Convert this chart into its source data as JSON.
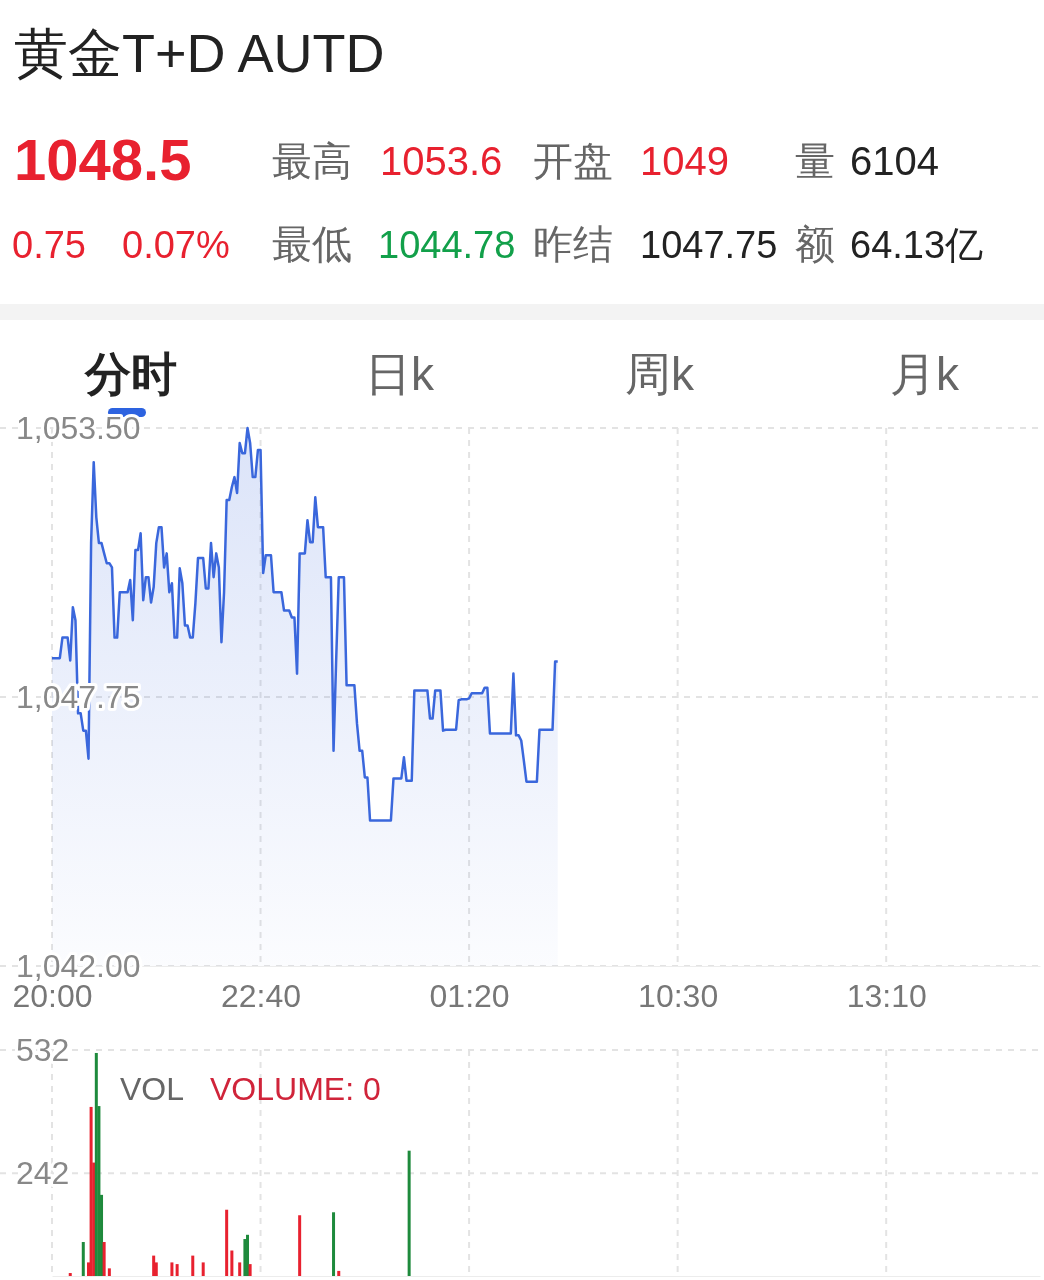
{
  "chart_data": [
    {
      "type": "area",
      "title": "黄金T+D AUTD",
      "annotations": [
        "1048.5",
        "最高",
        "1053.6",
        "开盘",
        "1049",
        "量",
        "6104",
        "0.75",
        "0.07%",
        "最低",
        "1044.78",
        "昨结",
        "1047.75",
        "额",
        "64.13亿",
        "分时",
        "日k",
        "周k",
        "月k"
      ],
      "categories": [
        "20:00",
        null,
        null,
        null,
        null,
        null,
        null,
        null,
        null,
        null,
        null,
        null,
        null,
        null,
        null,
        null,
        null,
        null,
        null,
        null,
        null,
        null,
        null,
        null,
        null,
        null,
        null,
        null,
        null,
        null,
        null,
        null,
        null,
        null,
        null,
        null,
        null,
        null,
        null,
        null,
        null,
        null,
        null,
        null,
        null,
        null,
        null,
        null,
        null,
        null,
        null,
        null,
        null,
        null,
        null,
        null,
        null,
        null,
        null,
        null,
        null,
        null,
        null,
        null,
        null,
        null,
        null,
        null,
        null,
        null,
        null,
        null,
        null,
        null,
        null,
        null,
        null,
        null,
        null,
        null,
        "22:40",
        null,
        null,
        null,
        null,
        null,
        null,
        null,
        null,
        null,
        null,
        null,
        null,
        null,
        null,
        null,
        null,
        null,
        null,
        null,
        null,
        null,
        null,
        null,
        null,
        null,
        null,
        null,
        null,
        null,
        null,
        null,
        null,
        null,
        null,
        null,
        null,
        null,
        null,
        null,
        null,
        null,
        null,
        null,
        null,
        null,
        null,
        null,
        null,
        null,
        null,
        null,
        null,
        null,
        null,
        null,
        null,
        null,
        null,
        null,
        null,
        null,
        null,
        null,
        null,
        null,
        null,
        null,
        null,
        null,
        null,
        null,
        null,
        null,
        null,
        null,
        null,
        null,
        null,
        null,
        "01:20",
        null,
        null,
        null,
        null,
        null,
        null,
        null,
        null,
        null,
        null,
        null,
        null,
        null,
        null,
        null,
        null,
        null,
        null,
        null,
        null,
        null,
        null,
        null,
        null,
        null,
        null,
        null,
        null,
        null,
        null,
        null,
        null,
        null,
        null,
        null,
        null,
        null,
        null,
        null,
        null,
        null,
        null,
        null,
        null,
        null,
        null,
        null,
        null,
        null,
        null,
        null,
        null,
        null,
        null,
        null,
        null,
        null,
        null,
        null,
        null,
        null,
        null,
        null,
        null,
        null,
        null,
        null,
        null,
        null,
        null,
        null,
        null,
        null,
        null,
        null,
        null,
        null,
        null,
        null,
        "10:30",
        null,
        null,
        null,
        null,
        null,
        null,
        null,
        null,
        null,
        null,
        null,
        null,
        null,
        null,
        null,
        null,
        null,
        null,
        null,
        null,
        null,
        null,
        null,
        null,
        null,
        null,
        null,
        null,
        null,
        null,
        null,
        null,
        null,
        null,
        null,
        null,
        null,
        null,
        null,
        null,
        null,
        null,
        null,
        null,
        null,
        null,
        null,
        null,
        null,
        null,
        null,
        null,
        null,
        null,
        null,
        null,
        null,
        null,
        null,
        null,
        null,
        null,
        null,
        null,
        null,
        null,
        null,
        null,
        null,
        null,
        null,
        null,
        null,
        null,
        null,
        null,
        null,
        null,
        null,
        "13:10",
        null,
        null,
        null,
        null,
        null,
        null,
        null,
        null,
        null,
        null,
        null,
        null,
        null,
        null,
        null,
        null,
        null,
        null,
        null,
        null,
        null,
        null,
        null,
        null,
        null,
        null,
        null,
        null,
        null,
        null,
        null,
        null,
        null,
        null,
        null,
        null,
        null,
        null,
        null,
        null,
        null,
        null,
        null,
        null,
        null,
        null,
        null,
        null,
        null,
        null,
        null,
        null,
        null,
        null,
        null,
        null,
        null,
        null,
        null
      ],
      "series": [
        {
          "color": "#3a67dc",
          "values": [
            1048.58,
            1048.58,
            1048.58,
            1048.58,
            1049.02,
            1049.02,
            1049.02,
            1048.53,
            1049.67,
            1049.39,
            1047.4,
            1047.4,
            1047.03,
            1047.03,
            1046.43,
            1051.04,
            1052.77,
            1051.59,
            1051.04,
            1051.04,
            1050.82,
            1050.61,
            1050.61,
            1050.52,
            1049.02,
            1049.02,
            1049.99,
            1049.99,
            1049.99,
            1049.99,
            1050.25,
            1049.39,
            1050.89,
            1050.89,
            1051.25,
            1049.82,
            1050.31,
            1050.31,
            1049.77,
            1050.1,
            1051.04,
            1051.38,
            1051.38,
            1050.52,
            1050.82,
            1049.99,
            1050.18,
            1049.02,
            1049.02,
            1050.5,
            1050.18,
            1049.28,
            1049.28,
            1049.02,
            1049.02,
            1049.75,
            1050.72,
            1050.72,
            1050.72,
            1050.07,
            1050.07,
            1051.04,
            1050.31,
            1050.82,
            1050.52,
            1048.92,
            1049.99,
            1051.96,
            1051.96,
            1052.24,
            1052.45,
            1052.11,
            1053.18,
            1052.96,
            1052.96,
            1053.5,
            1053.18,
            1052.45,
            1052.45,
            1053.03,
            1053.03,
            1050.4,
            1050.78,
            1050.78,
            1050.78,
            1049.99,
            1049.99,
            1049.99,
            1049.99,
            1049.6,
            1049.6,
            1049.6,
            1049.45,
            1049.45,
            1048.25,
            1050.82,
            1050.82,
            1050.82,
            1051.53,
            1051.06,
            1051.06,
            1052.02,
            1051.38,
            1051.38,
            1051.38,
            1050.31,
            1050.31,
            1050.31,
            1046.6,
            1048.53,
            1050.31,
            1050.31,
            1050.31,
            1048.0,
            1048.0,
            1048.0,
            1048.0,
            1047.18,
            1046.6,
            1046.6,
            1046.03,
            1046.03,
            1045.11,
            1045.11,
            1045.11,
            1045.11,
            1045.11,
            1045.11,
            1045.11,
            1045.11,
            1045.11,
            1046.01,
            1046.01,
            1046.01,
            1046.01,
            1046.46,
            1045.96,
            1045.96,
            1045.96,
            1047.89,
            1047.89,
            1047.89,
            1047.89,
            1047.89,
            1047.89,
            1047.29,
            1047.29,
            1047.89,
            1047.89,
            1047.89,
            1047.03,
            1047.05,
            1047.05,
            1047.05,
            1047.05,
            1047.05,
            1047.68,
            1047.7,
            1047.7,
            1047.7,
            1047.72,
            1047.83,
            1047.83,
            1047.83,
            1047.83,
            1047.83,
            1047.95,
            1047.95,
            1046.97,
            1046.97,
            1046.97,
            1046.97,
            1046.97,
            1046.97,
            1046.97,
            1046.97,
            1046.97,
            1048.25,
            1046.93,
            1046.93,
            1046.82,
            1046.39,
            1045.94,
            1045.94,
            1045.94,
            1045.94,
            1045.94,
            1047.05,
            1047.05,
            1047.05,
            1047.05,
            1047.05,
            1047.05,
            1048.51,
            1048.51,
            null,
            null,
            null,
            null,
            null,
            null,
            null,
            null,
            null,
            null,
            null,
            null,
            null,
            null,
            null,
            null,
            null,
            null,
            null,
            null,
            null,
            null,
            null,
            null,
            null,
            null,
            null,
            null,
            null,
            null,
            null,
            null,
            null,
            null,
            null,
            null,
            null,
            null,
            null,
            null,
            null,
            null,
            null,
            null,
            null,
            null,
            null,
            null,
            null,
            null,
            null,
            null,
            null,
            null,
            null,
            null,
            null,
            null,
            null,
            null,
            null,
            null,
            null,
            null,
            null,
            null,
            null,
            null,
            null,
            null,
            null,
            null,
            null,
            null,
            null,
            null,
            null,
            null,
            null,
            null,
            null,
            null,
            null,
            null,
            null,
            null,
            null,
            null,
            null,
            null,
            null,
            null,
            null,
            null,
            null,
            null,
            null,
            null,
            null,
            null,
            null,
            null,
            null,
            null,
            null,
            null,
            null,
            null,
            null,
            null,
            null,
            null,
            null,
            null,
            null,
            null,
            null,
            null,
            null,
            null,
            null,
            null,
            null,
            null,
            null,
            null,
            null,
            null,
            null,
            null,
            null,
            null,
            null,
            null,
            null,
            null,
            null,
            null,
            null,
            null,
            null,
            null,
            null,
            null,
            null,
            null,
            null,
            null,
            null,
            null,
            null,
            null,
            null,
            null,
            null,
            null,
            null,
            null,
            null,
            null,
            null,
            null,
            null,
            null,
            null,
            null,
            null,
            null,
            null,
            null,
            null,
            null,
            null,
            null,
            null,
            null,
            null,
            null,
            null,
            null,
            null,
            null,
            null,
            null,
            null
          ]
        }
      ],
      "ylim": [
        1042,
        1053.5
      ],
      "yticks": [
        {
          "value": 1042,
          "label": "1,042.00"
        },
        {
          "value": 1047.75,
          "label": "1,047.75"
        },
        {
          "value": 1053.5,
          "label": "1,053.50"
        }
      ],
      "grid": true
    },
    {
      "type": "bar",
      "annotations": [
        "VOL",
        "VOLUME: 0"
      ],
      "categories": [
        null,
        null,
        null,
        null,
        null,
        null,
        null,
        null,
        null,
        null,
        null,
        null,
        null,
        null,
        null,
        null,
        null,
        null,
        null,
        null,
        null,
        null,
        null,
        null,
        null,
        null,
        null,
        null,
        null,
        null,
        null,
        null,
        null,
        null,
        null,
        null,
        null,
        null,
        null,
        null,
        null,
        null,
        null,
        null,
        null,
        null,
        null,
        null,
        null,
        null,
        null,
        null,
        null,
        null,
        null,
        null,
        null,
        null,
        null,
        null,
        null,
        null,
        null,
        null,
        null,
        null,
        null,
        null,
        null,
        null,
        null,
        null,
        null,
        null,
        null,
        null,
        null,
        null,
        null,
        null,
        null,
        null,
        null,
        null,
        null,
        null,
        null,
        null,
        null,
        null,
        null,
        null,
        null,
        null,
        null,
        null,
        null,
        null,
        null,
        null,
        null,
        null,
        null,
        null,
        null,
        null,
        null,
        null,
        null,
        null,
        null,
        null,
        null,
        null,
        null,
        null,
        null,
        null,
        null,
        null,
        null,
        null,
        null,
        null,
        null,
        null,
        null,
        null,
        null,
        null,
        null,
        null,
        null,
        null,
        null,
        null,
        null,
        null,
        null,
        null,
        null,
        null,
        null,
        null,
        null,
        null,
        null,
        null,
        null,
        null,
        null,
        null,
        null,
        null,
        null,
        null,
        null,
        null,
        null,
        null,
        null,
        null,
        null,
        null,
        null,
        null,
        null,
        null,
        null,
        null,
        null,
        null,
        null,
        null,
        null,
        null,
        null,
        null,
        null,
        null,
        null,
        null,
        null,
        null,
        null,
        null,
        null,
        null,
        null,
        null,
        null,
        null,
        null,
        null,
        null,
        null,
        null,
        null,
        null,
        null,
        null,
        null,
        null,
        null,
        null,
        null,
        null,
        null,
        null,
        null,
        null,
        null,
        null,
        null,
        null,
        null,
        null,
        null,
        null,
        null,
        null,
        null,
        null,
        null,
        null,
        null,
        null,
        null,
        null,
        null,
        null,
        null,
        null,
        null,
        null,
        null,
        null,
        null,
        null,
        null,
        null,
        null,
        null,
        null,
        null,
        null,
        null,
        null,
        null,
        null,
        null,
        null,
        null,
        null,
        null,
        null,
        null,
        null,
        null,
        null,
        null,
        null,
        null,
        null,
        null,
        null,
        null,
        null,
        null,
        null,
        null,
        null,
        null,
        null,
        null,
        null,
        null,
        null,
        null,
        null,
        null,
        null,
        null,
        null,
        null,
        null,
        null,
        null,
        null,
        null,
        null,
        null,
        null,
        null,
        null,
        null,
        null,
        null,
        null,
        null,
        null,
        null,
        null,
        null,
        null,
        null,
        null,
        null,
        null,
        null,
        null,
        null,
        null,
        null,
        null,
        null,
        null,
        null,
        null,
        null,
        null,
        null,
        null,
        null,
        null,
        null,
        null,
        null,
        null,
        null,
        null,
        null,
        null,
        null,
        null,
        null,
        null,
        null,
        null,
        null,
        null,
        null,
        null,
        null,
        null,
        null,
        null,
        null,
        null,
        null,
        null,
        null,
        null,
        null,
        null,
        null,
        null,
        null,
        null,
        null,
        null,
        null,
        null,
        null,
        null,
        null,
        null,
        null,
        null,
        null,
        null,
        null,
        null,
        null,
        null,
        null,
        null,
        null,
        null,
        null
      ],
      "values": [
        null,
        null,
        null,
        null,
        null,
        null,
        null,
        7,
        null,
        null,
        null,
        null,
        80,
        null,
        32,
        398,
        267,
        525,
        400,
        191,
        80,
        null,
        18,
        null,
        null,
        null,
        null,
        null,
        null,
        null,
        null,
        null,
        null,
        null,
        null,
        null,
        null,
        null,
        null,
        48,
        32,
        null,
        null,
        null,
        null,
        null,
        32,
        null,
        28,
        null,
        null,
        null,
        null,
        null,
        48,
        null,
        null,
        null,
        32,
        null,
        null,
        null,
        null,
        null,
        null,
        null,
        null,
        156,
        null,
        60,
        null,
        null,
        32,
        null,
        87,
        97,
        28,
        null,
        null,
        null,
        null,
        null,
        null,
        null,
        null,
        null,
        null,
        null,
        null,
        null,
        null,
        null,
        null,
        null,
        null,
        143,
        null,
        null,
        null,
        null,
        null,
        null,
        null,
        null,
        null,
        null,
        null,
        null,
        150,
        null,
        12,
        null,
        null,
        null,
        null,
        null,
        null,
        null,
        null,
        null,
        null,
        null,
        null,
        null,
        null,
        null,
        null,
        null,
        null,
        null,
        null,
        null,
        null,
        null,
        null,
        null,
        null,
        295,
        null,
        null,
        null,
        null,
        null,
        null,
        null,
        null,
        null,
        null,
        null,
        null,
        null,
        null,
        null,
        null,
        null,
        null,
        null,
        null,
        null,
        null,
        null,
        null,
        null,
        null,
        null,
        null,
        null,
        null,
        null,
        null,
        null,
        null,
        null,
        null,
        null,
        null,
        null,
        null,
        null,
        null,
        null,
        null,
        null,
        null,
        null,
        null,
        null,
        null,
        null,
        null,
        null,
        null,
        null,
        null,
        null,
        null,
        null,
        null,
        null,
        null,
        null,
        null,
        null,
        null,
        null,
        null,
        null,
        null,
        null,
        null,
        null,
        null,
        null,
        null,
        null,
        null,
        null,
        null,
        null,
        null,
        null,
        null,
        null,
        null,
        null,
        null,
        null,
        null,
        null,
        null,
        null,
        null,
        null,
        null,
        null,
        null,
        null,
        null,
        null,
        null,
        null,
        null,
        null,
        null,
        null,
        null,
        null,
        null,
        null,
        null,
        null,
        null,
        null,
        null,
        null,
        null,
        null,
        null,
        null,
        null,
        null,
        null,
        null,
        null,
        null,
        null,
        null,
        null,
        null,
        null,
        null,
        null,
        null,
        null,
        null,
        null,
        null,
        null,
        null,
        null,
        null,
        null,
        null,
        null,
        null,
        null,
        null,
        null,
        null,
        null,
        null,
        null,
        null,
        null,
        null,
        null,
        null,
        null,
        null,
        null,
        null,
        null,
        null,
        null,
        null,
        null,
        null,
        null,
        null,
        null,
        null,
        null,
        null,
        null,
        null,
        null,
        null,
        null,
        null,
        null,
        null,
        null,
        null,
        null,
        null,
        null,
        null,
        null,
        null,
        null,
        null,
        null,
        null,
        null,
        null,
        null,
        null,
        null,
        null,
        null,
        null,
        null,
        null,
        null,
        null,
        null,
        null,
        null,
        null,
        null,
        null,
        null,
        null,
        null,
        null,
        null,
        null,
        null,
        null,
        null,
        null,
        null,
        null,
        null,
        null,
        null,
        null,
        null,
        null,
        null,
        null,
        null,
        null,
        null,
        null,
        null,
        null,
        null,
        null,
        null
      ],
      "colors": [
        null,
        null,
        null,
        null,
        null,
        null,
        null,
        "#e8212f",
        null,
        null,
        null,
        null,
        "#1e8a3c",
        null,
        "#e8212f",
        "#e8212f",
        "#e8212f",
        "#1e8a3c",
        "#1e8a3c",
        "#1e8a3c",
        "#e8212f",
        null,
        "#e8212f",
        null,
        null,
        null,
        null,
        null,
        null,
        null,
        null,
        null,
        null,
        null,
        null,
        null,
        null,
        null,
        null,
        "#e8212f",
        "#e8212f",
        null,
        null,
        null,
        null,
        null,
        "#e8212f",
        null,
        "#e8212f",
        null,
        null,
        null,
        null,
        null,
        "#e8212f",
        null,
        null,
        null,
        "#e8212f",
        null,
        null,
        null,
        null,
        null,
        null,
        null,
        null,
        "#e8212f",
        null,
        "#e8212f",
        null,
        null,
        "#e8212f",
        null,
        "#1e8a3c",
        "#1e8a3c",
        "#e8212f",
        null,
        null,
        null,
        null,
        null,
        null,
        null,
        null,
        null,
        null,
        null,
        null,
        null,
        null,
        null,
        null,
        null,
        null,
        "#e8212f",
        null,
        null,
        null,
        null,
        null,
        null,
        null,
        null,
        null,
        null,
        null,
        null,
        "#1e8a3c",
        null,
        "#e8212f",
        null,
        null,
        null,
        null,
        null,
        null,
        null,
        null,
        null,
        null,
        null,
        null,
        null,
        null,
        null,
        null,
        null,
        null,
        null,
        null,
        null,
        null,
        null,
        null,
        null,
        null,
        "#1e8a3c",
        null,
        null,
        null,
        null,
        null,
        null,
        null,
        null,
        null,
        null,
        null,
        null,
        null,
        null,
        null,
        null,
        null,
        null,
        null,
        null,
        null,
        null,
        null,
        null,
        null,
        null,
        null,
        null,
        null,
        null,
        null,
        null,
        null,
        null,
        null,
        null,
        null,
        null,
        null,
        null,
        null,
        null,
        null,
        null,
        null,
        null,
        null,
        null,
        null,
        null,
        null,
        null,
        null,
        null,
        null,
        null,
        null,
        null,
        null,
        null,
        null,
        null,
        null,
        null,
        null,
        null,
        null,
        null,
        null,
        null,
        null,
        null,
        null,
        null,
        null,
        null,
        null,
        null,
        null,
        null,
        null,
        null,
        null,
        null,
        null,
        null,
        null,
        null,
        null,
        null,
        null,
        null,
        null,
        null,
        null,
        null,
        null,
        null,
        null,
        null,
        null,
        null,
        null,
        null,
        null,
        null,
        null,
        null,
        null,
        null,
        null,
        null,
        null,
        null,
        null,
        null,
        null,
        null,
        null,
        null,
        null,
        null,
        null,
        null,
        null,
        null,
        null,
        null,
        null,
        null,
        null,
        null,
        null,
        null,
        null,
        null,
        null,
        null,
        null,
        null,
        null,
        null,
        null,
        null,
        null,
        null,
        null,
        null,
        null,
        null,
        null,
        null,
        null,
        null,
        null,
        null,
        null,
        null,
        null,
        null,
        null,
        null,
        null,
        null,
        null,
        null,
        null,
        null,
        null,
        null,
        null,
        null,
        null,
        null,
        null,
        null,
        null,
        null,
        null,
        null,
        null,
        null,
        null,
        null,
        null,
        null,
        null,
        null,
        null,
        null,
        null,
        null,
        null,
        null,
        null,
        null,
        null,
        null,
        null,
        null,
        null,
        null,
        null,
        null,
        null,
        null,
        null,
        null,
        null,
        null,
        null,
        null,
        null,
        null,
        null,
        null,
        null,
        null,
        null,
        null,
        null,
        null,
        null,
        null,
        null,
        null,
        null,
        null,
        null,
        null,
        null,
        null,
        null,
        null,
        null,
        null,
        null,
        null,
        null,
        null,
        null,
        null
      ],
      "ylim": [
        0,
        532
      ],
      "yticks": [
        242,
        532
      ],
      "tick_labels": "y",
      "grid": true
    }
  ]
}
